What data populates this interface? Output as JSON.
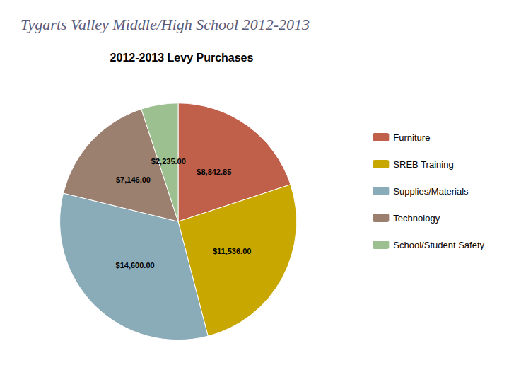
{
  "chart_data": {
    "type": "pie",
    "title": "Tygarts Valley Middle/High School 2012-2013",
    "subtitle": "2012-2013 Levy Purchases",
    "categories": [
      "Furniture",
      "SREB Training",
      "Supplies/Materials",
      "Technology",
      "School/Student Safety"
    ],
    "values": [
      8842.85,
      11536.0,
      14600.0,
      7146.0,
      2235.0
    ],
    "value_labels": [
      "$8,842.85",
      "$11,536.00",
      "$14,600.00",
      "$7,146.00",
      "$2,235.00"
    ],
    "colors": [
      "#C0604A",
      "#C8A800",
      "#8AABB8",
      "#9B8070",
      "#9DC090"
    ],
    "data_labels": true,
    "legend": "right"
  }
}
